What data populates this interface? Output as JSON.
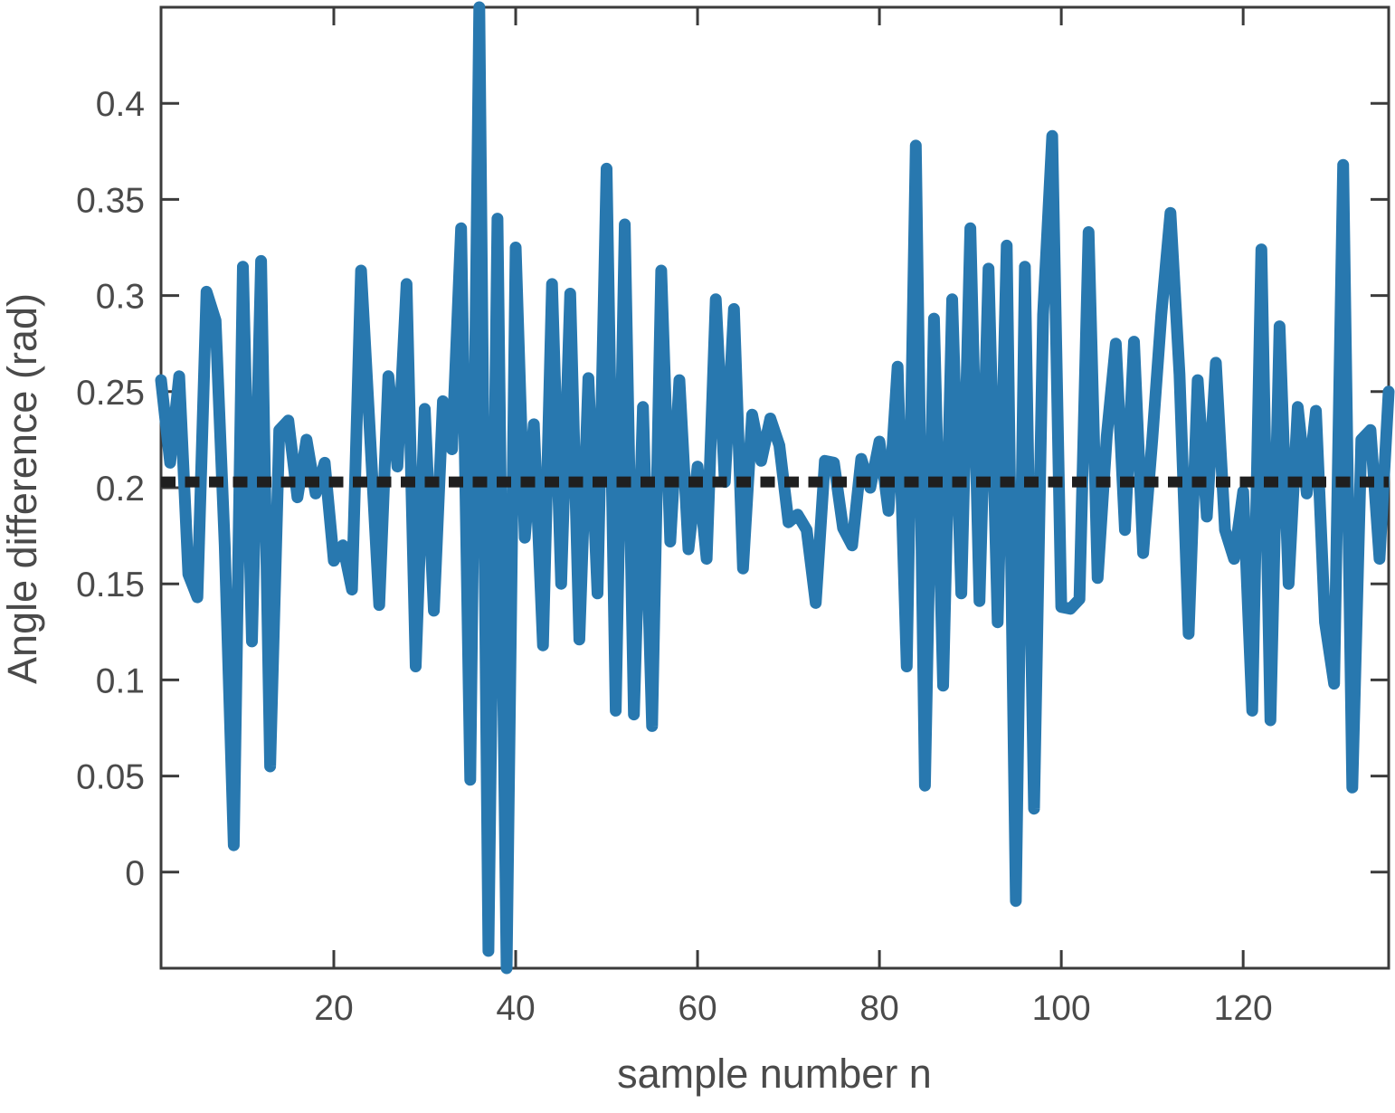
{
  "figure": {
    "xlabel": "sample number n",
    "ylabel": "Angle difference (rad)",
    "background": "#ffffff",
    "axis_color": "#3b3b3b",
    "label_color": "#4a4a4a"
  },
  "chart_data": {
    "type": "line",
    "xlabel": "sample number n",
    "ylabel": "Angle difference (rad)",
    "xlim": [
      1,
      136
    ],
    "ylim": [
      -0.05,
      0.45
    ],
    "xticks": [
      20,
      40,
      60,
      80,
      100,
      120
    ],
    "yticks": [
      0,
      0.05,
      0.1,
      0.15,
      0.2,
      0.25,
      0.3,
      0.35,
      0.4
    ],
    "grid": false,
    "legend": "none",
    "x_start": 1,
    "series": [
      {
        "name": "angle-difference-signal",
        "color": "#2878af",
        "line_width": 13,
        "values": [
          0.256,
          0.213,
          0.258,
          0.155,
          0.143,
          0.302,
          0.287,
          0.17,
          0.014,
          0.315,
          0.12,
          0.318,
          0.055,
          0.23,
          0.235,
          0.195,
          0.225,
          0.197,
          0.213,
          0.162,
          0.17,
          0.147,
          0.313,
          0.226,
          0.139,
          0.258,
          0.211,
          0.306,
          0.107,
          0.241,
          0.136,
          0.245,
          0.22,
          0.335,
          0.048,
          0.45,
          -0.041,
          0.34,
          -0.05,
          0.325,
          0.174,
          0.233,
          0.118,
          0.306,
          0.15,
          0.301,
          0.121,
          0.257,
          0.145,
          0.366,
          0.084,
          0.337,
          0.082,
          0.242,
          0.076,
          0.313,
          0.172,
          0.256,
          0.168,
          0.211,
          0.163,
          0.298,
          0.203,
          0.293,
          0.158,
          0.238,
          0.214,
          0.236,
          0.222,
          0.182,
          0.186,
          0.178,
          0.14,
          0.214,
          0.213,
          0.179,
          0.17,
          0.215,
          0.2,
          0.224,
          0.188,
          0.263,
          0.107,
          0.378,
          0.045,
          0.288,
          0.097,
          0.298,
          0.145,
          0.335,
          0.141,
          0.314,
          0.13,
          0.326,
          -0.015,
          0.315,
          0.033,
          0.29,
          0.383,
          0.138,
          0.137,
          0.142,
          0.333,
          0.153,
          0.227,
          0.275,
          0.178,
          0.276,
          0.166,
          0.225,
          0.29,
          0.343,
          0.259,
          0.124,
          0.256,
          0.185,
          0.265,
          0.178,
          0.163,
          0.198,
          0.084,
          0.324,
          0.079,
          0.284,
          0.15,
          0.242,
          0.197,
          0.24,
          0.13,
          0.098,
          0.368,
          0.044,
          0.225,
          0.23,
          0.163,
          0.25
        ]
      },
      {
        "name": "mean-line",
        "color": "#1f1f1f",
        "style": "dotted",
        "line_width": 12,
        "value": 0.203
      }
    ]
  }
}
